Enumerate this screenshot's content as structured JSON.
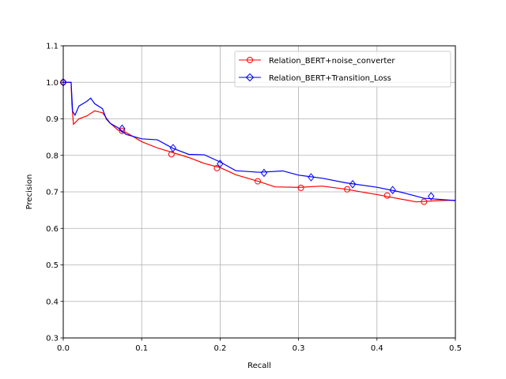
{
  "chart_data": {
    "type": "line",
    "title": "",
    "xlabel": "Recall",
    "ylabel": "Precision",
    "xlim": [
      0.0,
      0.5
    ],
    "ylim": [
      0.3,
      1.1
    ],
    "xticks": [
      0.0,
      0.1,
      0.2,
      0.3,
      0.4,
      0.5
    ],
    "xtick_labels": [
      "0.0",
      "0.1",
      "0.2",
      "0.3",
      "0.4",
      "0.5"
    ],
    "yticks": [
      0.3,
      0.4,
      0.5,
      0.6,
      0.7,
      0.8,
      0.9,
      1.0,
      1.1
    ],
    "ytick_labels": [
      "0.3",
      "0.4",
      "0.5",
      "0.6",
      "0.7",
      "0.8",
      "0.9",
      "1.0",
      "1.1"
    ],
    "grid": true,
    "legend_position": "top-right",
    "series": [
      {
        "name": "Relation_BERT+noise_converter",
        "color": "#ff0000",
        "marker": "circle",
        "x": [
          0.0,
          0.01,
          0.011,
          0.013,
          0.02,
          0.03,
          0.04,
          0.05,
          0.06,
          0.07,
          0.08,
          0.09,
          0.1,
          0.12,
          0.14,
          0.16,
          0.18,
          0.2,
          0.22,
          0.25,
          0.27,
          0.3,
          0.33,
          0.36,
          0.38,
          0.4,
          0.42,
          0.45,
          0.48,
          0.5
        ],
        "y": [
          1.0,
          1.0,
          0.94,
          0.885,
          0.9,
          0.91,
          0.92,
          0.915,
          0.89,
          0.87,
          0.86,
          0.85,
          0.84,
          0.82,
          0.805,
          0.795,
          0.78,
          0.765,
          0.745,
          0.73,
          0.715,
          0.71,
          0.715,
          0.71,
          0.7,
          0.69,
          0.685,
          0.675,
          0.675,
          0.675
        ],
        "markers_x": [
          0.0,
          0.075,
          0.138,
          0.196,
          0.248,
          0.303,
          0.362,
          0.413,
          0.46
        ],
        "markers_y": [
          1.0,
          0.867,
          0.803,
          0.765,
          0.729,
          0.711,
          0.707,
          0.69,
          0.673
        ]
      },
      {
        "name": "Relation_BERT+Transition_Loss",
        "color": "#0000ff",
        "marker": "diamond",
        "x": [
          0.0,
          0.01,
          0.012,
          0.015,
          0.02,
          0.03,
          0.035,
          0.04,
          0.05,
          0.055,
          0.06,
          0.07,
          0.08,
          0.1,
          0.12,
          0.14,
          0.16,
          0.18,
          0.2,
          0.22,
          0.25,
          0.28,
          0.3,
          0.33,
          0.36,
          0.4,
          0.43,
          0.46,
          0.5
        ],
        "y": [
          1.0,
          1.0,
          0.92,
          0.91,
          0.935,
          0.95,
          0.955,
          0.94,
          0.93,
          0.9,
          0.885,
          0.875,
          0.86,
          0.845,
          0.84,
          0.82,
          0.805,
          0.8,
          0.78,
          0.76,
          0.755,
          0.755,
          0.745,
          0.74,
          0.725,
          0.71,
          0.7,
          0.685,
          0.675
        ],
        "markers_x": [
          0.0,
          0.075,
          0.14,
          0.2,
          0.256,
          0.316,
          0.369,
          0.42,
          0.469
        ],
        "markers_y": [
          1.0,
          0.873,
          0.82,
          0.777,
          0.752,
          0.74,
          0.721,
          0.705,
          0.688
        ]
      }
    ]
  }
}
